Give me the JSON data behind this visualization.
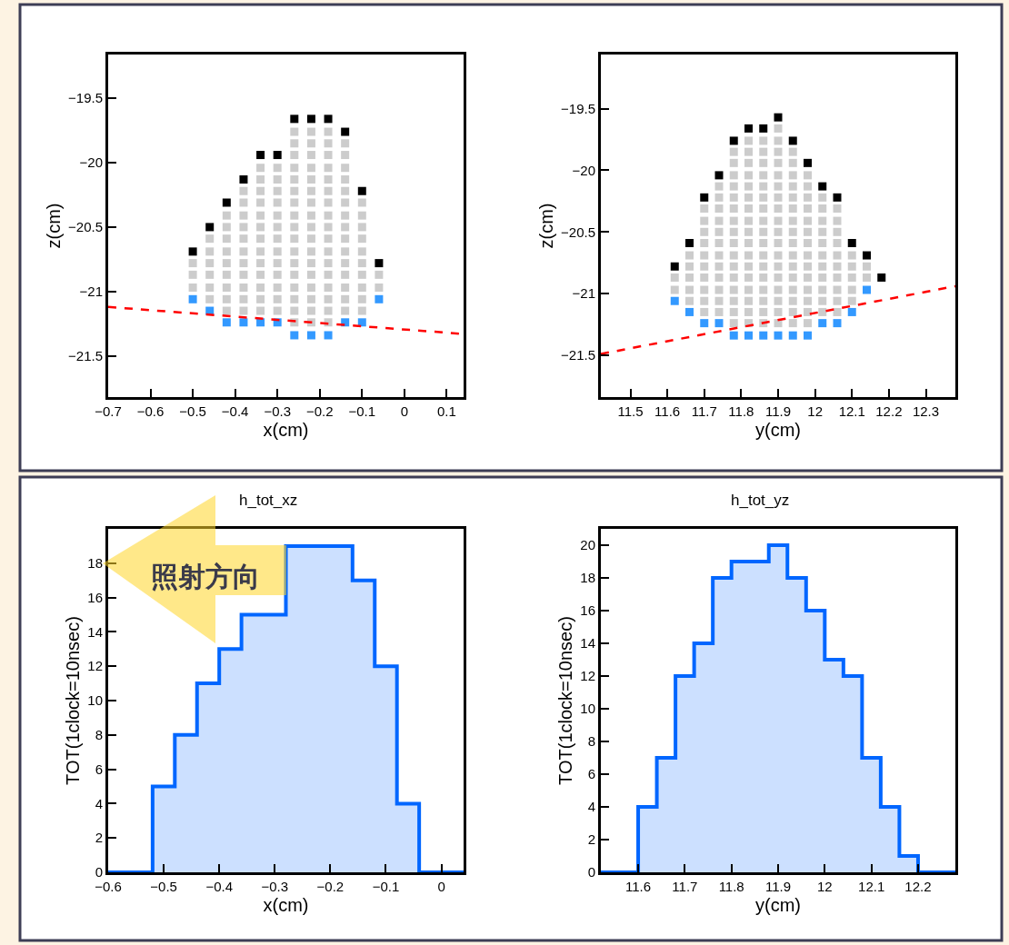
{
  "chart_data": [
    {
      "type": "scatter",
      "xlabel": "x(cm)",
      "ylabel": "z(cm)",
      "xlim": [
        -0.7,
        0.14
      ],
      "ylim": [
        -21.82,
        -19.16
      ],
      "xticks": [
        -0.7,
        -0.6,
        -0.5,
        -0.4,
        -0.3,
        -0.2,
        -0.1,
        0,
        0.1
      ],
      "yticks": [
        -21.5,
        -21,
        -20.5,
        -20,
        -19.5
      ],
      "marker": "square",
      "series": [
        {
          "color": "#cccccc",
          "x": [
            -0.5,
            -0.5,
            -0.5,
            -0.46,
            -0.46,
            -0.46,
            -0.46,
            -0.46,
            -0.46,
            -0.42,
            -0.42,
            -0.42,
            -0.42,
            -0.42,
            -0.42,
            -0.42,
            -0.42,
            -0.42,
            -0.38,
            -0.38,
            -0.38,
            -0.38,
            -0.38,
            -0.38,
            -0.38,
            -0.38,
            -0.38,
            -0.38,
            -0.38,
            -0.34,
            -0.34,
            -0.34,
            -0.34,
            -0.34,
            -0.34,
            -0.34,
            -0.34,
            -0.34,
            -0.34,
            -0.34,
            -0.34,
            -0.34,
            -0.3,
            -0.3,
            -0.3,
            -0.3,
            -0.3,
            -0.3,
            -0.3,
            -0.3,
            -0.3,
            -0.3,
            -0.3,
            -0.3,
            -0.3,
            -0.26,
            -0.26,
            -0.26,
            -0.26,
            -0.26,
            -0.26,
            -0.26,
            -0.26,
            -0.26,
            -0.26,
            -0.26,
            -0.26,
            -0.26,
            -0.26,
            -0.26,
            -0.26,
            -0.26,
            -0.22,
            -0.22,
            -0.22,
            -0.22,
            -0.22,
            -0.22,
            -0.22,
            -0.22,
            -0.22,
            -0.22,
            -0.22,
            -0.22,
            -0.22,
            -0.22,
            -0.22,
            -0.22,
            -0.22,
            -0.18,
            -0.18,
            -0.18,
            -0.18,
            -0.18,
            -0.18,
            -0.18,
            -0.18,
            -0.18,
            -0.18,
            -0.18,
            -0.18,
            -0.18,
            -0.18,
            -0.18,
            -0.18,
            -0.18,
            -0.14,
            -0.14,
            -0.14,
            -0.14,
            -0.14,
            -0.14,
            -0.14,
            -0.14,
            -0.14,
            -0.14,
            -0.14,
            -0.14,
            -0.14,
            -0.14,
            -0.14,
            -0.1,
            -0.1,
            -0.1,
            -0.1,
            -0.1,
            -0.1,
            -0.1,
            -0.1,
            -0.1,
            -0.1,
            -0.06,
            -0.06
          ],
          "values": [
            -20.78,
            -20.87,
            -20.97,
            -20.59,
            -20.69,
            -20.78,
            -20.87,
            -20.97,
            -21.06,
            -20.41,
            -20.5,
            -20.59,
            -20.69,
            -20.78,
            -20.87,
            -20.97,
            -21.06,
            -21.15,
            -20.22,
            -20.31,
            -20.41,
            -20.5,
            -20.59,
            -20.69,
            -20.78,
            -20.87,
            -20.97,
            -21.06,
            -21.15,
            -20.04,
            -20.13,
            -20.22,
            -20.31,
            -20.41,
            -20.5,
            -20.59,
            -20.69,
            -20.78,
            -20.87,
            -20.97,
            -21.06,
            -21.15,
            -20.04,
            -20.13,
            -20.22,
            -20.31,
            -20.41,
            -20.5,
            -20.59,
            -20.69,
            -20.78,
            -20.87,
            -20.97,
            -21.06,
            -21.15,
            -19.76,
            -19.85,
            -19.94,
            -20.04,
            -20.13,
            -20.22,
            -20.31,
            -20.41,
            -20.5,
            -20.59,
            -20.69,
            -20.78,
            -20.87,
            -20.97,
            -21.06,
            -21.15,
            -21.24,
            -19.76,
            -19.85,
            -19.94,
            -20.04,
            -20.13,
            -20.22,
            -20.31,
            -20.41,
            -20.5,
            -20.59,
            -20.69,
            -20.78,
            -20.87,
            -20.97,
            -21.06,
            -21.15,
            -21.24,
            -19.76,
            -19.85,
            -19.94,
            -20.04,
            -20.13,
            -20.22,
            -20.31,
            -20.41,
            -20.5,
            -20.59,
            -20.69,
            -20.78,
            -20.87,
            -20.97,
            -21.06,
            -21.15,
            -21.24,
            -19.85,
            -19.94,
            -20.04,
            -20.13,
            -20.22,
            -20.31,
            -20.41,
            -20.5,
            -20.59,
            -20.69,
            -20.78,
            -20.87,
            -20.97,
            -21.06,
            -21.15,
            -20.31,
            -20.41,
            -20.5,
            -20.59,
            -20.69,
            -20.78,
            -20.87,
            -20.97,
            -21.06,
            -21.15,
            -20.87,
            -20.97
          ]
        },
        {
          "color": "#000000",
          "x": [
            -0.5,
            -0.46,
            -0.42,
            -0.38,
            -0.34,
            -0.3,
            -0.26,
            -0.22,
            -0.18,
            -0.14,
            -0.1,
            -0.06
          ],
          "values": [
            -20.69,
            -20.5,
            -20.31,
            -20.13,
            -19.94,
            -19.94,
            -19.66,
            -19.66,
            -19.66,
            -19.76,
            -20.22,
            -20.78
          ]
        },
        {
          "color": "#3399ff",
          "x": [
            -0.5,
            -0.46,
            -0.42,
            -0.38,
            -0.34,
            -0.3,
            -0.26,
            -0.22,
            -0.18,
            -0.14,
            -0.1,
            -0.06
          ],
          "values": [
            -21.06,
            -21.15,
            -21.24,
            -21.24,
            -21.24,
            -21.24,
            -21.34,
            -21.34,
            -21.34,
            -21.24,
            -21.24,
            -21.06
          ]
        },
        {
          "type": "line",
          "marker": "none",
          "color": "#ff0000",
          "line_style": "dashed",
          "x": [
            -0.7,
            0.14
          ],
          "values": [
            -21.12,
            -21.33
          ]
        }
      ]
    },
    {
      "type": "scatter",
      "xlabel": "y(cm)",
      "ylabel": "z(cm)",
      "xlim": [
        11.42,
        12.38
      ],
      "ylim": [
        -21.84,
        -19.06
      ],
      "xticks": [
        11.5,
        11.6,
        11.7,
        11.8,
        11.9,
        12,
        12.1,
        12.2,
        12.3
      ],
      "yticks": [
        -21.5,
        -21,
        -20.5,
        -20,
        -19.5
      ],
      "marker": "square",
      "series": [
        {
          "color": "#cccccc",
          "x": [
            11.62,
            11.62,
            11.66,
            11.66,
            11.66,
            11.66,
            11.66,
            11.7,
            11.7,
            11.7,
            11.7,
            11.7,
            11.7,
            11.7,
            11.7,
            11.7,
            11.7,
            11.74,
            11.74,
            11.74,
            11.74,
            11.74,
            11.74,
            11.74,
            11.74,
            11.74,
            11.74,
            11.74,
            11.74,
            11.78,
            11.78,
            11.78,
            11.78,
            11.78,
            11.78,
            11.78,
            11.78,
            11.78,
            11.78,
            11.78,
            11.78,
            11.78,
            11.78,
            11.78,
            11.78,
            11.82,
            11.82,
            11.82,
            11.82,
            11.82,
            11.82,
            11.82,
            11.82,
            11.82,
            11.82,
            11.82,
            11.82,
            11.82,
            11.82,
            11.82,
            11.82,
            11.82,
            11.86,
            11.86,
            11.86,
            11.86,
            11.86,
            11.86,
            11.86,
            11.86,
            11.86,
            11.86,
            11.86,
            11.86,
            11.86,
            11.86,
            11.86,
            11.86,
            11.86,
            11.9,
            11.9,
            11.9,
            11.9,
            11.9,
            11.9,
            11.9,
            11.9,
            11.9,
            11.9,
            11.9,
            11.9,
            11.9,
            11.9,
            11.9,
            11.9,
            11.9,
            11.9,
            11.94,
            11.94,
            11.94,
            11.94,
            11.94,
            11.94,
            11.94,
            11.94,
            11.94,
            11.94,
            11.94,
            11.94,
            11.94,
            11.94,
            11.94,
            11.94,
            11.98,
            11.98,
            11.98,
            11.98,
            11.98,
            11.98,
            11.98,
            11.98,
            11.98,
            11.98,
            11.98,
            11.98,
            11.98,
            11.98,
            12.02,
            12.02,
            12.02,
            12.02,
            12.02,
            12.02,
            12.02,
            12.02,
            12.02,
            12.02,
            12.02,
            12.06,
            12.06,
            12.06,
            12.06,
            12.06,
            12.06,
            12.06,
            12.06,
            12.06,
            12.06,
            12.1,
            12.1,
            12.1,
            12.1,
            12.1,
            12.14,
            12.14
          ],
          "values": [
            -20.87,
            -20.97,
            -20.69,
            -20.78,
            -20.87,
            -20.97,
            -21.06,
            -20.31,
            -20.41,
            -20.5,
            -20.59,
            -20.69,
            -20.78,
            -20.87,
            -20.97,
            -21.06,
            -21.15,
            -20.13,
            -20.22,
            -20.31,
            -20.41,
            -20.5,
            -20.59,
            -20.69,
            -20.78,
            -20.87,
            -20.97,
            -21.06,
            -21.15,
            -19.85,
            -19.94,
            -20.04,
            -20.13,
            -20.22,
            -20.31,
            -20.41,
            -20.5,
            -20.59,
            -20.69,
            -20.78,
            -20.87,
            -20.97,
            -21.06,
            -21.15,
            -21.24,
            -19.76,
            -19.85,
            -19.94,
            -20.04,
            -20.13,
            -20.22,
            -20.31,
            -20.41,
            -20.5,
            -20.59,
            -20.69,
            -20.78,
            -20.87,
            -20.97,
            -21.06,
            -21.15,
            -21.24,
            -19.76,
            -19.85,
            -19.94,
            -20.04,
            -20.13,
            -20.22,
            -20.31,
            -20.41,
            -20.5,
            -20.59,
            -20.69,
            -20.78,
            -20.87,
            -20.97,
            -21.06,
            -21.15,
            -21.24,
            -19.66,
            -19.76,
            -19.85,
            -19.94,
            -20.04,
            -20.13,
            -20.22,
            -20.31,
            -20.41,
            -20.5,
            -20.59,
            -20.69,
            -20.78,
            -20.87,
            -20.97,
            -21.06,
            -21.15,
            -21.24,
            -19.85,
            -19.94,
            -20.04,
            -20.13,
            -20.22,
            -20.31,
            -20.41,
            -20.5,
            -20.59,
            -20.69,
            -20.78,
            -20.87,
            -20.97,
            -21.06,
            -21.15,
            -21.24,
            -20.04,
            -20.13,
            -20.22,
            -20.31,
            -20.41,
            -20.5,
            -20.59,
            -20.69,
            -20.78,
            -20.87,
            -20.97,
            -21.06,
            -21.15,
            -21.24,
            -20.22,
            -20.31,
            -20.41,
            -20.5,
            -20.59,
            -20.69,
            -20.78,
            -20.87,
            -20.97,
            -21.06,
            -21.15,
            -20.31,
            -20.41,
            -20.5,
            -20.59,
            -20.69,
            -20.78,
            -20.87,
            -20.97,
            -21.06,
            -21.15,
            -20.69,
            -20.78,
            -20.87,
            -20.97,
            -21.06,
            -20.78,
            -20.87
          ]
        },
        {
          "color": "#000000",
          "x": [
            11.62,
            11.66,
            11.7,
            11.74,
            11.78,
            11.82,
            11.86,
            11.9,
            11.94,
            11.98,
            12.02,
            12.06,
            12.1,
            12.14,
            12.18
          ],
          "values": [
            -20.78,
            -20.59,
            -20.22,
            -20.04,
            -19.76,
            -19.66,
            -19.66,
            -19.57,
            -19.76,
            -19.94,
            -20.13,
            -20.22,
            -20.59,
            -20.69,
            -20.87
          ]
        },
        {
          "color": "#3399ff",
          "x": [
            11.62,
            11.66,
            11.7,
            11.74,
            11.78,
            11.82,
            11.86,
            11.9,
            11.94,
            11.98,
            12.02,
            12.06,
            12.1,
            12.14
          ],
          "values": [
            -21.06,
            -21.15,
            -21.24,
            -21.24,
            -21.34,
            -21.34,
            -21.34,
            -21.34,
            -21.34,
            -21.34,
            -21.24,
            -21.24,
            -21.15,
            -20.97
          ]
        },
        {
          "type": "line",
          "marker": "none",
          "color": "#ff0000",
          "line_style": "dashed",
          "x": [
            11.42,
            12.38
          ],
          "values": [
            -21.49,
            -20.94
          ]
        }
      ]
    },
    {
      "type": "histogram",
      "title": "h_tot_xz",
      "xlabel": "x(cm)",
      "ylabel": "TOT(1clock=10nsec)",
      "color": "#0066ff",
      "xlim": [
        -0.6,
        0.04
      ],
      "ylim": [
        0,
        20
      ],
      "xticks": [
        -0.6,
        -0.5,
        -0.4,
        -0.3,
        -0.2,
        -0.1,
        0
      ],
      "yticks": [
        0,
        2,
        4,
        6,
        8,
        10,
        12,
        14,
        16,
        18
      ],
      "bins": [
        -0.6,
        -0.56,
        -0.52,
        -0.48,
        -0.44,
        -0.4,
        -0.36,
        -0.32,
        -0.28,
        -0.24,
        -0.2,
        -0.16,
        -0.12,
        -0.08,
        -0.04,
        0,
        0.04
      ],
      "values": [
        0,
        0,
        5,
        8,
        11,
        13,
        15,
        15,
        19,
        19,
        19,
        17,
        12,
        4,
        0,
        0
      ],
      "annotations": [
        "照射方向"
      ]
    },
    {
      "type": "histogram",
      "title": "h_tot_yz",
      "xlabel": "y(cm)",
      "ylabel": "TOT(1clock=10nsec)",
      "color": "#0066ff",
      "xlim": [
        11.52,
        12.28
      ],
      "ylim": [
        0,
        21
      ],
      "xticks": [
        11.6,
        11.7,
        11.8,
        11.9,
        12,
        12.1,
        12.2
      ],
      "yticks": [
        0,
        2,
        4,
        6,
        8,
        10,
        12,
        14,
        16,
        18,
        20
      ],
      "bins": [
        11.52,
        11.56,
        11.6,
        11.64,
        11.68,
        11.72,
        11.76,
        11.8,
        11.84,
        11.88,
        11.92,
        11.96,
        12,
        12.04,
        12.08,
        12.12,
        12.16,
        12.2,
        12.24,
        12.28
      ],
      "values": [
        0,
        0,
        4,
        7,
        12,
        14,
        18,
        19,
        19,
        20,
        18,
        16,
        13,
        12,
        7,
        4,
        1,
        0,
        0
      ]
    }
  ]
}
